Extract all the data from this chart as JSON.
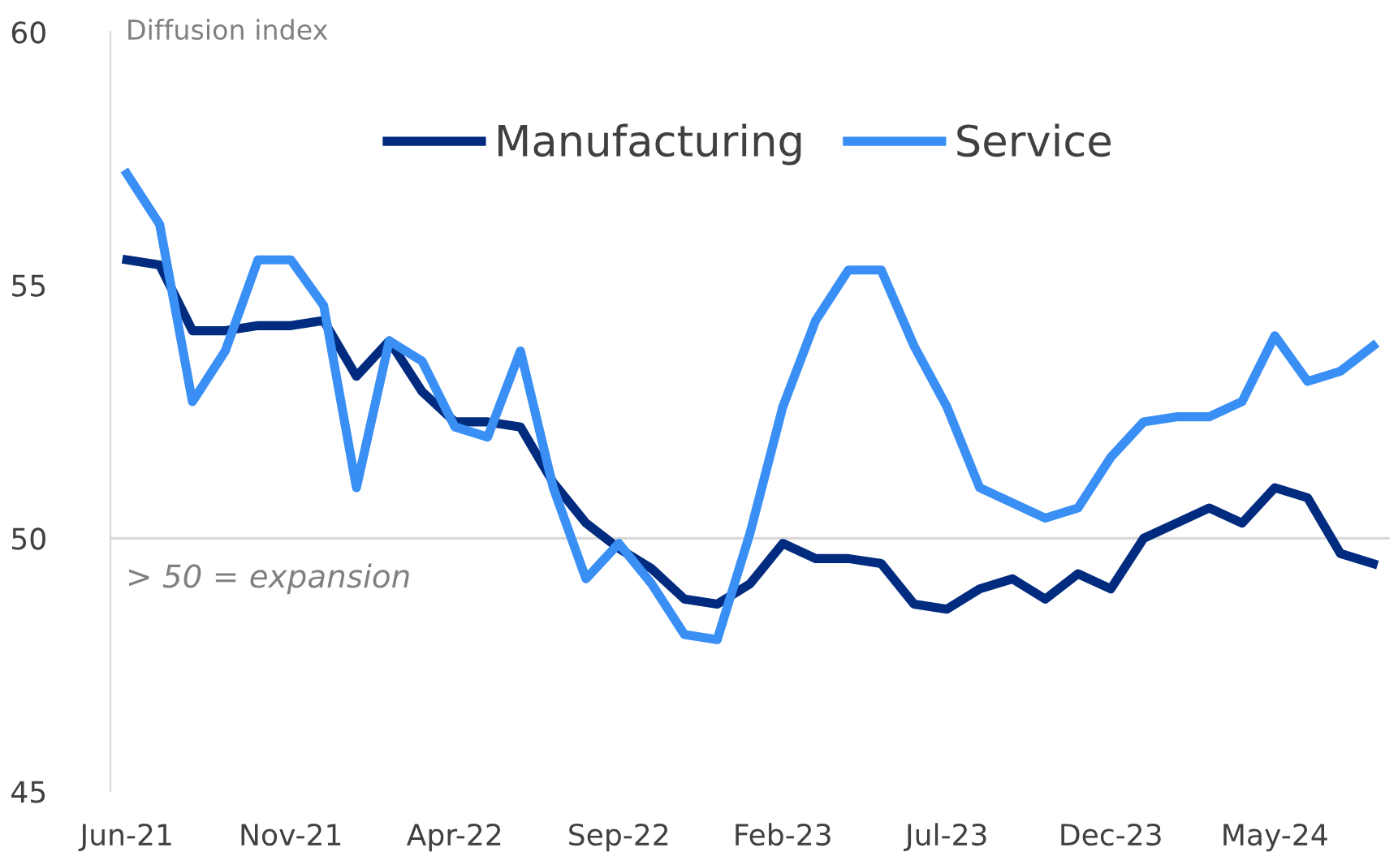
{
  "chart_data": {
    "type": "line",
    "ylabel": "Diffusion index",
    "categories": [
      "Jun-21",
      null,
      null,
      null,
      null,
      "Nov-21",
      null,
      null,
      null,
      null,
      "Apr-22",
      null,
      null,
      null,
      null,
      "Sep-22",
      null,
      null,
      null,
      null,
      "Feb-23",
      null,
      null,
      null,
      null,
      "Jul-23",
      null,
      null,
      null,
      null,
      "Dec-23",
      null,
      null,
      null,
      null,
      "May-24",
      null,
      null,
      null
    ],
    "series": [
      {
        "name": "Manufacturing",
        "color": "#002b7f",
        "values": [
          55.5,
          55.4,
          54.1,
          54.1,
          54.2,
          54.2,
          54.3,
          53.2,
          53.9,
          52.9,
          52.3,
          52.3,
          52.2,
          51.1,
          50.3,
          49.8,
          49.4,
          48.8,
          48.7,
          49.1,
          49.9,
          49.6,
          49.6,
          49.5,
          48.7,
          48.6,
          49.0,
          49.2,
          48.8,
          49.3,
          49.0,
          50.0,
          50.3,
          50.6,
          50.3,
          51.0,
          50.8,
          49.7,
          49.5
        ]
      },
      {
        "name": "Service",
        "color": "#3a8ff5",
        "values": [
          57.2,
          56.2,
          52.7,
          53.7,
          55.5,
          55.5,
          54.6,
          51.0,
          53.9,
          53.5,
          52.2,
          52.0,
          53.7,
          51.0,
          49.2,
          49.9,
          49.1,
          48.1,
          48.0,
          50.1,
          52.6,
          54.3,
          55.3,
          55.3,
          53.8,
          52.6,
          51.0,
          50.7,
          50.4,
          50.6,
          51.6,
          52.3,
          52.4,
          52.4,
          52.7,
          54.0,
          53.1,
          53.3,
          53.8
        ]
      }
    ],
    "ylim": [
      45,
      60
    ],
    "yticks": [
      45,
      50,
      55,
      60
    ],
    "ref_lines": [
      {
        "axis": "y",
        "value": 50,
        "color": "#d9d9d9"
      }
    ],
    "annotations": [
      "> 50 = expansion"
    ],
    "legend": "top",
    "grid": false,
    "marker": "none",
    "line_style": "solid"
  }
}
